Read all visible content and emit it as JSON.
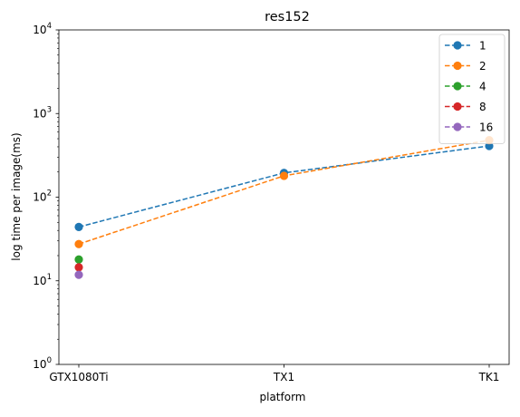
{
  "chart_data": {
    "type": "line",
    "title": "res152",
    "xlabel": "platform",
    "ylabel": "log time per image(ms)",
    "y_scale": "log",
    "ylim": [
      1,
      10000
    ],
    "grid": false,
    "legend_position": "top-right",
    "categories": [
      "GTX1080Ti",
      "TX1",
      "TK1"
    ],
    "y_ticks": [
      {
        "value": 1,
        "base": "10",
        "exp": "0"
      },
      {
        "value": 10,
        "base": "10",
        "exp": "1"
      },
      {
        "value": 100,
        "base": "10",
        "exp": "2"
      },
      {
        "value": 1000,
        "base": "10",
        "exp": "3"
      },
      {
        "value": 10000,
        "base": "10",
        "exp": "4"
      }
    ],
    "series": [
      {
        "name": "1",
        "color": "#1f77b4",
        "values": [
          44,
          195,
          410
        ]
      },
      {
        "name": "2",
        "color": "#ff7f0e",
        "values": [
          27.5,
          180,
          480
        ]
      },
      {
        "name": "4",
        "color": "#2ca02c",
        "values": [
          18,
          null,
          null
        ]
      },
      {
        "name": "8",
        "color": "#d62728",
        "values": [
          14.5,
          null,
          null
        ]
      },
      {
        "name": "16",
        "color": "#9467bd",
        "values": [
          11.8,
          null,
          null
        ]
      }
    ]
  }
}
